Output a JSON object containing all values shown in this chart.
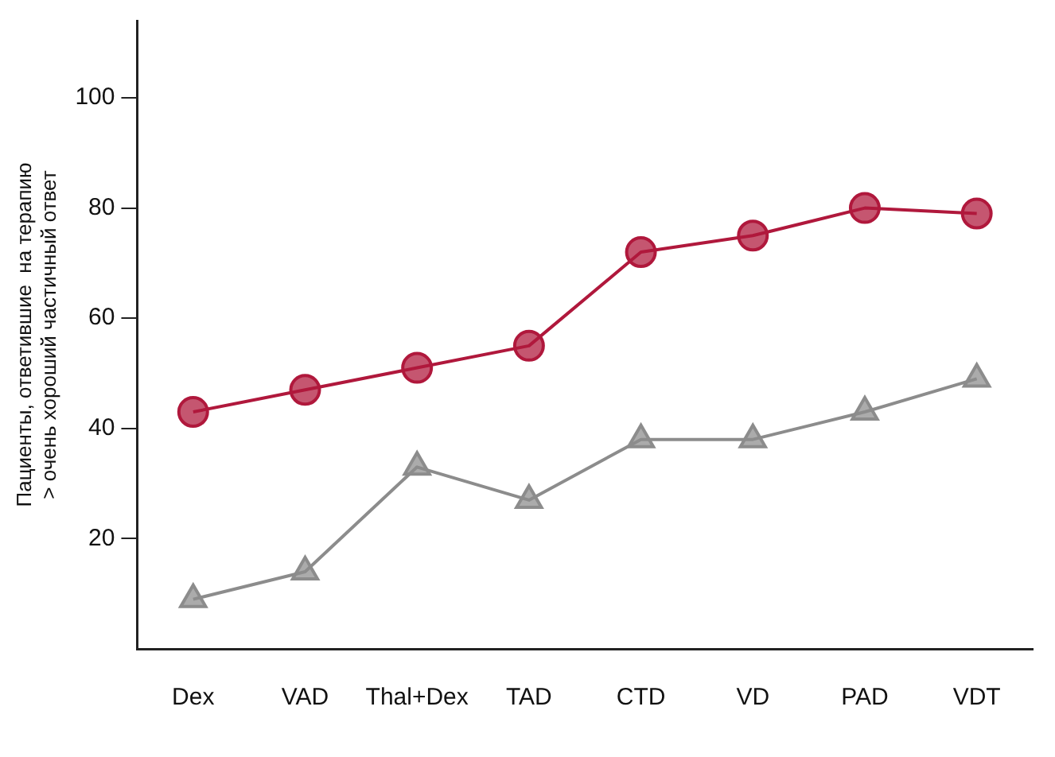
{
  "chart_data": {
    "type": "line",
    "ylabel": "Пациенты, ответившие  на терапию > очень хороший частичный ответ",
    "categories": [
      "Dex",
      "VAD",
      "Thal+Dex",
      "TAD",
      "CTD",
      "VD",
      "PAD",
      "VDT"
    ],
    "series": [
      {
        "color": "#b0183c",
        "marker": "circle",
        "values": [
          43,
          47,
          51,
          55,
          72,
          75,
          80,
          79
        ]
      },
      {
        "color": "#8c8c8c",
        "marker": "triangle",
        "values": [
          9,
          14,
          33,
          27,
          38,
          38,
          43,
          49
        ]
      }
    ],
    "ylim": [
      0,
      114
    ],
    "yticks": [
      20,
      40,
      60,
      80,
      100
    ],
    "grid": false,
    "legend": false
  }
}
